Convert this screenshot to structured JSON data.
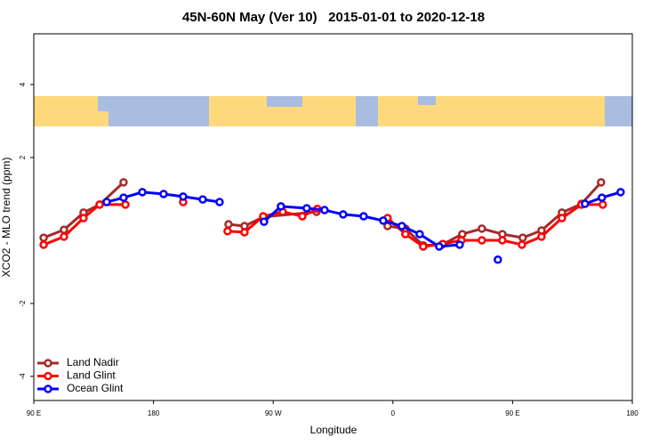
{
  "chart_data": {
    "type": "line",
    "title": "45N-60N May (Ver 10)   2015-01-01 to 2020-12-18",
    "x_label": "Longitude",
    "y_label": "XCO2 - MLO trend (ppm)",
    "xlim": [
      90,
      540
    ],
    "ylim": [
      -4.66,
      5.39
    ],
    "xticks": [
      {
        "value": 90,
        "label": "90 E"
      },
      180,
      {
        "value": 270,
        "label": "90 W"
      },
      {
        "value": 360,
        "label": "0"
      },
      {
        "value": 450,
        "label": "90 E"
      },
      {
        "value": 540,
        "label": "180"
      }
    ],
    "yticks": [
      -4,
      -2,
      2,
      4
    ],
    "legend": "bottom-left",
    "series": [
      {
        "name": "Land Nadir",
        "color": "#a52a2a",
        "x": [
          97.4,
          112.7,
          127.4,
          139.5,
          157.5,
          200,
          236.4,
          248.4,
          262.5,
          302.6,
          330,
          356,
          369.4,
          382.8,
          396.8,
          412.2,
          426.9,
          442.3,
          457.6,
          471.7,
          487.1,
          501.8,
          516.5
        ],
        "values": [
          -0.2,
          0.02,
          0.49,
          0.71,
          1.32,
          null,
          0.17,
          0.12,
          0.37,
          0.51,
          null,
          0.12,
          0.05,
          -0.41,
          -0.39,
          -0.1,
          0.05,
          -0.1,
          -0.2,
          0.0,
          0.49,
          0.73,
          1.32
        ]
      },
      {
        "name": "Land Glint",
        "color": "#ff0000",
        "x": [
          97.4,
          112.7,
          127.4,
          139.5,
          158.9,
          180,
          202.3,
          220,
          235.7,
          248.4,
          262.5,
          277.2,
          291.9,
          303.2,
          330,
          356,
          369.4,
          382.8,
          397.5,
          411.5,
          426.9,
          442.3,
          457,
          471.7,
          487.1,
          501.8,
          517.8
        ],
        "values": [
          -0.39,
          -0.17,
          0.34,
          0.71,
          0.71,
          null,
          0.78,
          null,
          -0.02,
          -0.05,
          0.39,
          0.51,
          0.39,
          0.59,
          null,
          0.34,
          -0.1,
          -0.44,
          -0.37,
          -0.27,
          -0.27,
          -0.27,
          -0.39,
          -0.17,
          0.34,
          0.71,
          0.71
        ]
      },
      {
        "name": "Ocean Glint",
        "color": "#0000ff",
        "x": [
          144.8,
          157.5,
          171.6,
          187.6,
          202.3,
          217,
          229.7,
          245,
          263.1,
          275.8,
          295.2,
          308.6,
          322.6,
          338,
          352.7,
          366.7,
          380.1,
          394.8,
          410.2,
          425,
          438.9,
          470,
          504.4,
          517.1,
          531.2
        ],
        "values": [
          0.78,
          0.9,
          1.05,
          1.0,
          0.93,
          0.85,
          0.78,
          null,
          0.24,
          0.66,
          0.61,
          0.56,
          0.44,
          0.39,
          0.27,
          0.12,
          -0.1,
          -0.44,
          -0.39,
          null,
          -0.8,
          null,
          0.73,
          0.9,
          1.05
        ]
      }
    ]
  }
}
